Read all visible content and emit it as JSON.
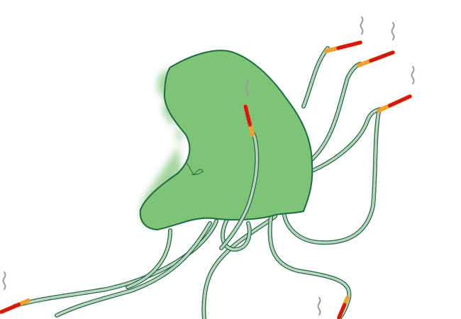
{
  "colors": {
    "background": "#ffffff",
    "body_fill": "#7dc378",
    "body_outline": "#1f6b3f",
    "tentacle_outline": "#2d7048",
    "tentacle_inner": "#e6f2e6",
    "tip_red": "#d11818",
    "tip_orange": "#f0a030",
    "smoke": "#9a9a9a"
  },
  "icons": {
    "body": "jellyfish-body",
    "tentacle": "tentacle",
    "tip": "burning-tip",
    "smoke": "smoke-wisp"
  }
}
